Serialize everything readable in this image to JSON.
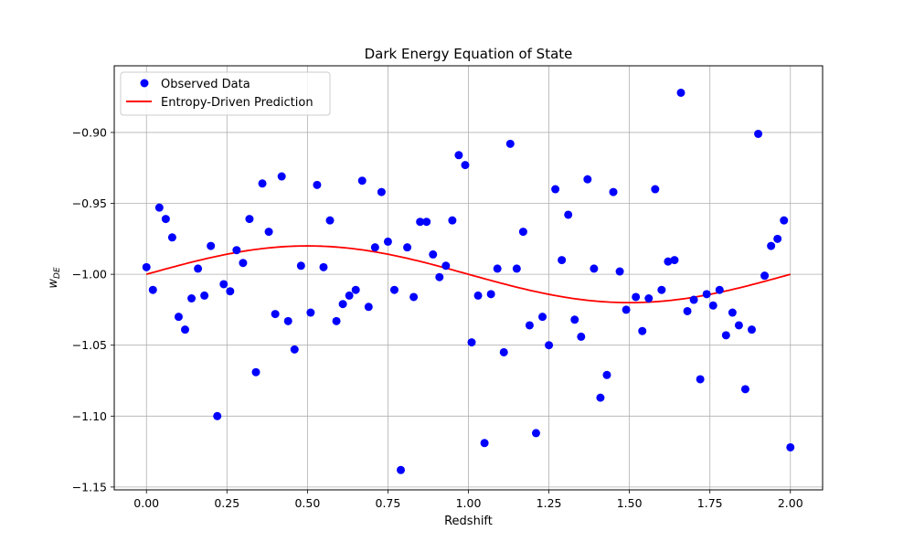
{
  "chart_data": {
    "type": "scatter",
    "title": "Dark Energy Equation of State",
    "xlabel": "Redshift",
    "ylabel_main": "w",
    "ylabel_sub": "DE",
    "xlim": [
      -0.1,
      2.1
    ],
    "ylim": [
      -1.152,
      -0.853
    ],
    "xticks": [
      0.0,
      0.25,
      0.5,
      0.75,
      1.0,
      1.25,
      1.5,
      1.75,
      2.0
    ],
    "xtick_labels": [
      "0.00",
      "0.25",
      "0.50",
      "0.75",
      "1.00",
      "1.25",
      "1.50",
      "1.75",
      "2.00"
    ],
    "yticks": [
      -1.15,
      -1.1,
      -1.05,
      -1.0,
      -0.95,
      -0.9
    ],
    "ytick_labels": [
      "−1.15",
      "−1.10",
      "−1.05",
      "−1.00",
      "−0.95",
      "−0.90"
    ],
    "grid": true,
    "legend_position": "top-left",
    "series": [
      {
        "name": "Observed Data",
        "kind": "scatter",
        "color": "#0000ff",
        "x": [
          0.0,
          0.02,
          0.04,
          0.06,
          0.08,
          0.1,
          0.12,
          0.14,
          0.16,
          0.18,
          0.2,
          0.22,
          0.24,
          0.26,
          0.28,
          0.3,
          0.32,
          0.34,
          0.36,
          0.38,
          0.4,
          0.42,
          0.44,
          0.46,
          0.48,
          0.51,
          0.53,
          0.55,
          0.57,
          0.59,
          0.61,
          0.63,
          0.65,
          0.67,
          0.69,
          0.71,
          0.73,
          0.75,
          0.77,
          0.79,
          0.81,
          0.83,
          0.85,
          0.87,
          0.89,
          0.91,
          0.93,
          0.95,
          0.97,
          0.99,
          1.01,
          1.03,
          1.05,
          1.07,
          1.09,
          1.11,
          1.13,
          1.15,
          1.17,
          1.19,
          1.21,
          1.23,
          1.25,
          1.27,
          1.29,
          1.31,
          1.33,
          1.35,
          1.37,
          1.39,
          1.41,
          1.43,
          1.45,
          1.47,
          1.49,
          1.52,
          1.54,
          1.56,
          1.58,
          1.6,
          1.62,
          1.64,
          1.66,
          1.68,
          1.7,
          1.72,
          1.74,
          1.76,
          1.78,
          1.8,
          1.82,
          1.84,
          1.86,
          1.88,
          1.9,
          1.92,
          1.94,
          1.96,
          1.98,
          2.0
        ],
        "y": [
          -0.995,
          -1.011,
          -0.953,
          -0.961,
          -0.974,
          -1.03,
          -1.039,
          -1.017,
          -0.996,
          -1.015,
          -0.98,
          -1.1,
          -1.007,
          -1.012,
          -0.983,
          -0.992,
          -0.961,
          -1.069,
          -0.936,
          -0.97,
          -1.028,
          -0.931,
          -1.033,
          -1.053,
          -0.994,
          -1.027,
          -0.937,
          -0.995,
          -0.962,
          -1.033,
          -1.021,
          -1.015,
          -1.011,
          -0.934,
          -1.023,
          -0.981,
          -0.942,
          -0.977,
          -1.011,
          -1.138,
          -0.981,
          -1.016,
          -0.963,
          -0.963,
          -0.986,
          -1.002,
          -0.994,
          -0.962,
          -0.916,
          -0.923,
          -1.048,
          -1.015,
          -1.119,
          -1.014,
          -0.996,
          -1.055,
          -0.908,
          -0.996,
          -0.97,
          -1.036,
          -1.112,
          -1.03,
          -1.05,
          -0.94,
          -0.99,
          -0.958,
          -1.032,
          -1.044,
          -0.933,
          -0.996,
          -1.087,
          -1.071,
          -0.942,
          -0.998,
          -1.025,
          -1.016,
          -1.04,
          -1.017,
          -0.94,
          -1.011,
          -0.991,
          -0.99,
          -0.872,
          -1.026,
          -1.018,
          -1.074,
          -1.014,
          -1.022,
          -1.011,
          -1.043,
          -1.027,
          -1.036,
          -1.081,
          -1.039,
          -0.901,
          -1.001,
          -0.98,
          -0.975,
          -0.962,
          -1.122
        ]
      },
      {
        "name": "Entropy-Driven Prediction",
        "kind": "line",
        "color": "#ff0000",
        "function": "-1 + 0.02*sin(pi*x)",
        "x_range": [
          0.0,
          2.0
        ]
      }
    ]
  }
}
